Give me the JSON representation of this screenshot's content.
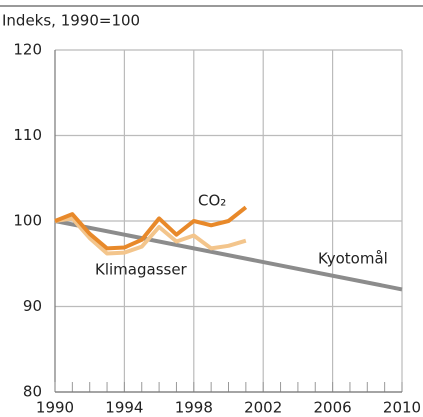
{
  "chart_data": {
    "type": "line",
    "subtitle": "Indeks, 1990=100",
    "xlim": [
      1990,
      2010
    ],
    "xticks": [
      1990,
      1994,
      1998,
      2002,
      2006,
      2010
    ],
    "ylim": [
      80,
      120
    ],
    "yticks": [
      80,
      90,
      100,
      110,
      120
    ],
    "grid": true,
    "series": [
      {
        "name": "CO₂",
        "color": "#e8892a",
        "x": [
          1990,
          1991,
          1992,
          1993,
          1994,
          1995,
          1996,
          1997,
          1998,
          1999,
          2000,
          2001
        ],
        "values": [
          100,
          100.8,
          98.5,
          96.8,
          96.9,
          97.8,
          100.3,
          98.4,
          100,
          99.5,
          100,
          101.6
        ]
      },
      {
        "name": "Klimagasser",
        "color": "#f3c58c",
        "x": [
          1990,
          1991,
          1992,
          1993,
          1994,
          1995,
          1996,
          1997,
          1998,
          1999,
          2000,
          2001
        ],
        "values": [
          100,
          100.3,
          98,
          96.2,
          96.3,
          97,
          99.3,
          97.6,
          98.3,
          96.8,
          97.1,
          97.7
        ]
      },
      {
        "name": "Kyotomål",
        "color": "#8c8c8c",
        "x": [
          1990,
          2010
        ],
        "values": [
          100,
          92
        ]
      }
    ]
  }
}
